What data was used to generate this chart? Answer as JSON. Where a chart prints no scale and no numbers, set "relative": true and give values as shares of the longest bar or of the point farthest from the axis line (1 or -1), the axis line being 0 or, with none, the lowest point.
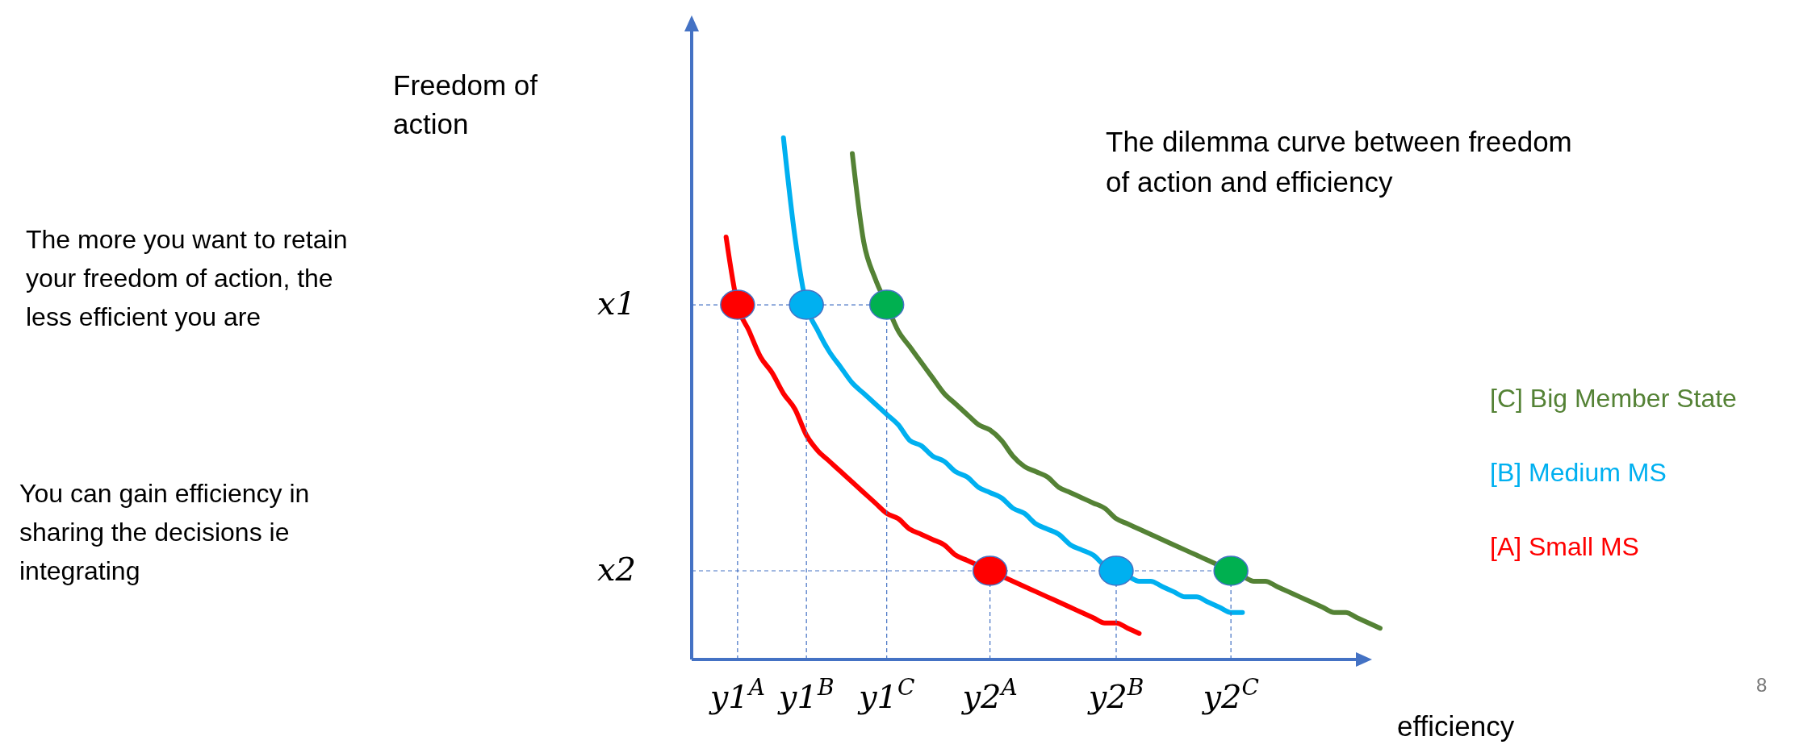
{
  "chart_data": {
    "type": "line",
    "relative": true,
    "title": "The dilemma curve between freedom of action and efficiency",
    "xlabel": "efficiency",
    "categories": [
      null,
      null,
      null,
      null,
      "y1$^{A}$",
      null,
      null,
      null,
      null,
      null,
      "y1$^{B}$",
      null,
      null,
      null,
      null,
      null,
      null,
      "y1$^{C}$",
      null,
      null,
      null,
      null,
      null,
      null,
      null,
      null,
      "y2$^{A}$",
      null,
      null,
      null,
      null,
      null,
      null,
      null,
      null,
      null,
      null,
      "y2$^{B}$",
      null,
      null,
      null,
      null,
      null,
      null,
      null,
      null,
      null,
      "y2$^{C}$",
      null,
      null,
      null,
      null,
      null,
      null,
      null,
      null,
      null,
      null,
      null,
      null,
      null
    ],
    "ref_lines": [
      {
        "axis": "y",
        "value": 0.68,
        "label": "x1",
        "line_style": "dashed"
      },
      {
        "axis": "y",
        "value": 0.17,
        "label": "x2",
        "line_style": "dashed"
      }
    ],
    "annotations": [
      "Freedom of action",
      "The more you want to retain your freedom of action, the less efficient you are",
      "You can gain efficiency in sharing the decisions ie integrating",
      "8"
    ],
    "series": [
      {
        "name": "[A]  Small MS",
        "color": "#ff0000",
        "values": [
          null,
          null,
          null,
          0.81,
          0.68,
          0.63,
          0.58,
          0.55,
          0.51,
          0.48,
          0.43,
          0.4,
          0.38,
          0.36,
          0.34,
          0.32,
          0.3,
          0.28,
          0.27,
          0.25,
          0.24,
          0.23,
          0.22,
          0.2,
          0.19,
          0.18,
          0.17,
          0.16,
          0.15,
          0.14,
          0.13,
          0.12,
          0.11,
          0.1,
          0.09,
          0.08,
          0.07,
          0.07,
          0.06,
          0.05,
          null,
          null,
          null,
          null,
          null,
          null,
          null,
          null,
          null,
          null,
          null,
          null,
          null,
          null,
          null,
          null,
          null,
          null,
          null,
          null,
          null
        ]
      },
      {
        "name": "[B]  Medium MS",
        "color": "#00b0f0",
        "values": [
          null,
          null,
          null,
          null,
          null,
          null,
          null,
          null,
          1,
          0.81,
          0.68,
          0.63,
          0.59,
          0.56,
          0.53,
          0.51,
          0.49,
          0.47,
          0.45,
          0.42,
          0.41,
          0.39,
          0.38,
          0.36,
          0.35,
          0.33,
          0.32,
          0.31,
          0.29,
          0.28,
          0.26,
          0.25,
          0.24,
          0.22,
          0.21,
          0.2,
          0.18,
          0.17,
          0.16,
          0.15,
          0.15,
          0.14,
          0.13,
          0.12,
          0.12,
          0.11,
          0.1,
          0.09,
          0.09,
          null,
          null,
          null,
          null,
          null,
          null,
          null,
          null,
          null,
          null,
          null,
          null
        ]
      },
      {
        "name": "[C] Big Member State",
        "color": "#548235",
        "values": [
          null,
          null,
          null,
          null,
          null,
          null,
          null,
          null,
          null,
          null,
          null,
          null,
          null,
          null,
          0.97,
          0.8,
          0.73,
          0.68,
          0.63,
          0.6,
          0.57,
          0.54,
          0.51,
          0.49,
          0.47,
          0.45,
          0.44,
          0.42,
          0.39,
          0.37,
          0.36,
          0.35,
          0.33,
          0.32,
          0.31,
          0.3,
          0.29,
          0.27,
          0.26,
          0.25,
          0.24,
          0.23,
          0.22,
          0.21,
          0.2,
          0.19,
          0.18,
          0.17,
          0.16,
          0.15,
          0.15,
          0.14,
          0.13,
          0.12,
          0.11,
          0.1,
          0.09,
          0.09,
          0.08,
          0.07,
          0.06
        ]
      },
      {
        "type": "scatter",
        "color": "#ff0000",
        "marker": "circle",
        "values": [
          null,
          null,
          null,
          null,
          0.68,
          null,
          null,
          null,
          null,
          null,
          null,
          null,
          null,
          null,
          null,
          null,
          null,
          null,
          null,
          null,
          null,
          null,
          null,
          null,
          null,
          null,
          0.17,
          null,
          null,
          null,
          null,
          null,
          null,
          null,
          null,
          null,
          null,
          null,
          null,
          null,
          null,
          null,
          null,
          null,
          null,
          null,
          null,
          null,
          null,
          null,
          null,
          null,
          null,
          null,
          null,
          null,
          null,
          null,
          null,
          null,
          null
        ]
      },
      {
        "type": "scatter",
        "color": "#00b0f0",
        "marker": "circle",
        "values": [
          null,
          null,
          null,
          null,
          null,
          null,
          null,
          null,
          null,
          null,
          0.68,
          null,
          null,
          null,
          null,
          null,
          null,
          null,
          null,
          null,
          null,
          null,
          null,
          null,
          null,
          null,
          null,
          null,
          null,
          null,
          null,
          null,
          null,
          null,
          null,
          null,
          null,
          0.17,
          null,
          null,
          null,
          null,
          null,
          null,
          null,
          null,
          null,
          null,
          null,
          null,
          null,
          null,
          null,
          null,
          null,
          null,
          null,
          null,
          null,
          null,
          null
        ]
      },
      {
        "type": "scatter",
        "color": "#00b050",
        "marker": "circle",
        "values": [
          null,
          null,
          null,
          null,
          null,
          null,
          null,
          null,
          null,
          null,
          null,
          null,
          null,
          null,
          null,
          null,
          null,
          0.68,
          null,
          null,
          null,
          null,
          null,
          null,
          null,
          null,
          null,
          null,
          null,
          null,
          null,
          null,
          null,
          null,
          null,
          null,
          null,
          null,
          null,
          null,
          null,
          null,
          null,
          null,
          null,
          null,
          null,
          0.17,
          null,
          null,
          null,
          null,
          null,
          null,
          null,
          null,
          null,
          null,
          null,
          null,
          null
        ]
      }
    ]
  }
}
